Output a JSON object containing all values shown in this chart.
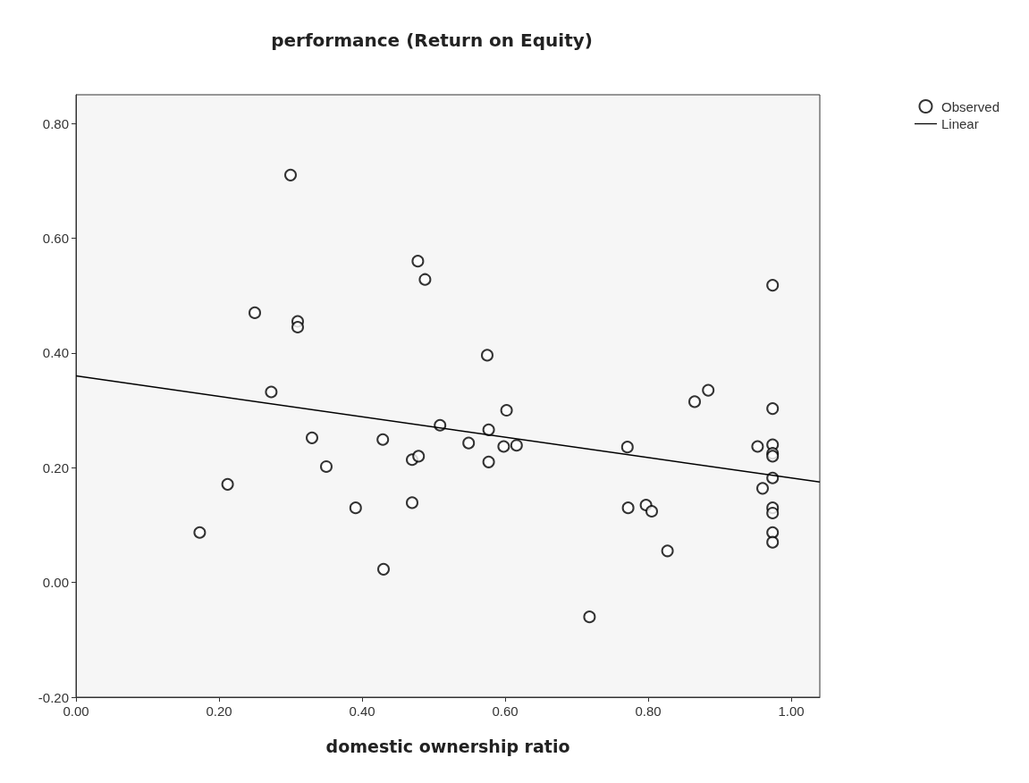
{
  "chart_data": {
    "type": "scatter",
    "title": "performance (Return on Equity)",
    "xlabel": "domestic ownership ratio",
    "xlim": [
      0,
      1.04
    ],
    "ylim": [
      -0.2,
      0.85
    ],
    "xticks": [
      {
        "value": 0,
        "label": "0.00"
      },
      {
        "value": 0.2,
        "label": "0.20"
      },
      {
        "value": 0.4,
        "label": "0.40"
      },
      {
        "value": 0.6,
        "label": "0.60"
      },
      {
        "value": 0.8,
        "label": "0.80"
      },
      {
        "value": 1,
        "label": "1.00"
      }
    ],
    "yticks": [
      {
        "value": -0.2,
        "label": "-0.20"
      },
      {
        "value": 0,
        "label": "0.00"
      },
      {
        "value": 0.2,
        "label": "0.20"
      },
      {
        "value": 0.4,
        "label": "0.40"
      },
      {
        "value": 0.6,
        "label": "0.60"
      },
      {
        "value": 0.8,
        "label": "0.80"
      }
    ],
    "grid": false,
    "legend": "top right",
    "series": [
      {
        "name": "Observed",
        "marker": "circle",
        "color": "#000000",
        "x": [
          0.3,
          0.488,
          0.478,
          0.25,
          0.31,
          0.31,
          0.575,
          0.273,
          0.33,
          0.35,
          0.212,
          0.173,
          0.391,
          0.43,
          0.429,
          0.47,
          0.47,
          0.479,
          0.509,
          0.549,
          0.577,
          0.577,
          0.602,
          0.598,
          0.616,
          0.718,
          0.771,
          0.772,
          0.827,
          0.797,
          0.805,
          0.865,
          0.884,
          0.953,
          0.96,
          0.974,
          0.974,
          0.974,
          0.974,
          0.974,
          0.974,
          0.974,
          0.974,
          0.974,
          0.974
        ],
        "values": [
          0.71,
          0.528,
          0.56,
          0.47,
          0.455,
          0.445,
          0.396,
          0.332,
          0.252,
          0.202,
          0.171,
          0.087,
          0.13,
          0.023,
          0.249,
          0.139,
          0.214,
          0.22,
          0.274,
          0.243,
          0.266,
          0.21,
          0.3,
          0.237,
          0.239,
          -0.06,
          0.236,
          0.13,
          0.055,
          0.135,
          0.124,
          0.315,
          0.335,
          0.237,
          0.164,
          0.518,
          0.303,
          0.24,
          0.225,
          0.22,
          0.182,
          0.13,
          0.121,
          0.087,
          0.07
        ]
      },
      {
        "name": "Linear",
        "type": "line",
        "color": "#000000",
        "x": [
          0,
          1.04
        ],
        "values": [
          0.36,
          0.175
        ]
      }
    ]
  }
}
